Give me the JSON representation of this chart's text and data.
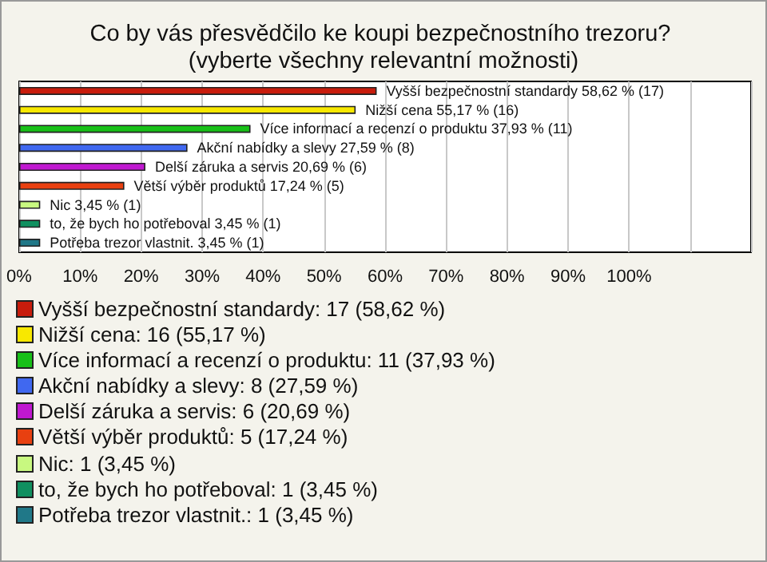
{
  "chart_data": {
    "type": "bar",
    "orientation": "horizontal",
    "title": "Co by vás přesvědčilo ke koupi bezpečnostního trezoru? (vyberte všechny relevantní možnosti)",
    "categories": [
      "Vyšší bezpečnostní standardy",
      "Nižší cena",
      "Více informací a recenzí o produktu",
      "Akční nabídky a slevy",
      "Delší záruka a servis",
      "Větší výběr produktů",
      "Nic",
      "to, že bych ho potřeboval",
      "Potřeba trezor vlastnit."
    ],
    "values": [
      58.62,
      55.17,
      37.93,
      27.59,
      20.69,
      17.24,
      3.45,
      3.45,
      3.45
    ],
    "colors": [
      "#c81c0c",
      "#f8e800",
      "#18c018",
      "#4068f0",
      "#c018d0",
      "#e84010",
      "#c8f880",
      "#109060",
      "#207888"
    ],
    "value_labels": [
      "58,62 % (17)",
      "55,17 % (16)",
      "37,93 % (11)",
      "27,59 % (8)",
      "20,69 % (6)",
      "17,24 % (5)",
      "3,45 % (1)",
      "3,45 % (1)",
      "3,45 % (1)"
    ],
    "xlim": [
      0,
      120
    ],
    "xticks": [
      {
        "value": 0,
        "label": "0%"
      },
      {
        "value": 10,
        "label": "10%"
      },
      {
        "value": 20,
        "label": "20%"
      },
      {
        "value": 30,
        "label": "30%"
      },
      {
        "value": 40,
        "label": "40%"
      },
      {
        "value": 50,
        "label": "50%"
      },
      {
        "value": 60,
        "label": "60%"
      },
      {
        "value": 70,
        "label": "70%"
      },
      {
        "value": 80,
        "label": "80%"
      },
      {
        "value": 90,
        "label": "90%"
      },
      {
        "value": 100,
        "label": "100%"
      }
    ],
    "grid": "x",
    "annotations": [
      "Vyšší bezpečnostní standardy: 17 (58,62 %)",
      "Nižší cena: 16 (55,17 %)",
      "Více informací a recenzí o produktu: 11 (37,93 %)",
      "Akční nabídky a slevy: 8 (27,59 %)",
      "Delší záruka a servis: 6 (20,69 %)",
      "Větší výběr produktů: 5 (17,24 %)",
      "Nic: 1 (3,45 %)",
      "to, že bych ho potřeboval: 1 (3,45 %)",
      "Potřeba trezor vlastnit.: 1 (3,45 %)"
    ]
  }
}
